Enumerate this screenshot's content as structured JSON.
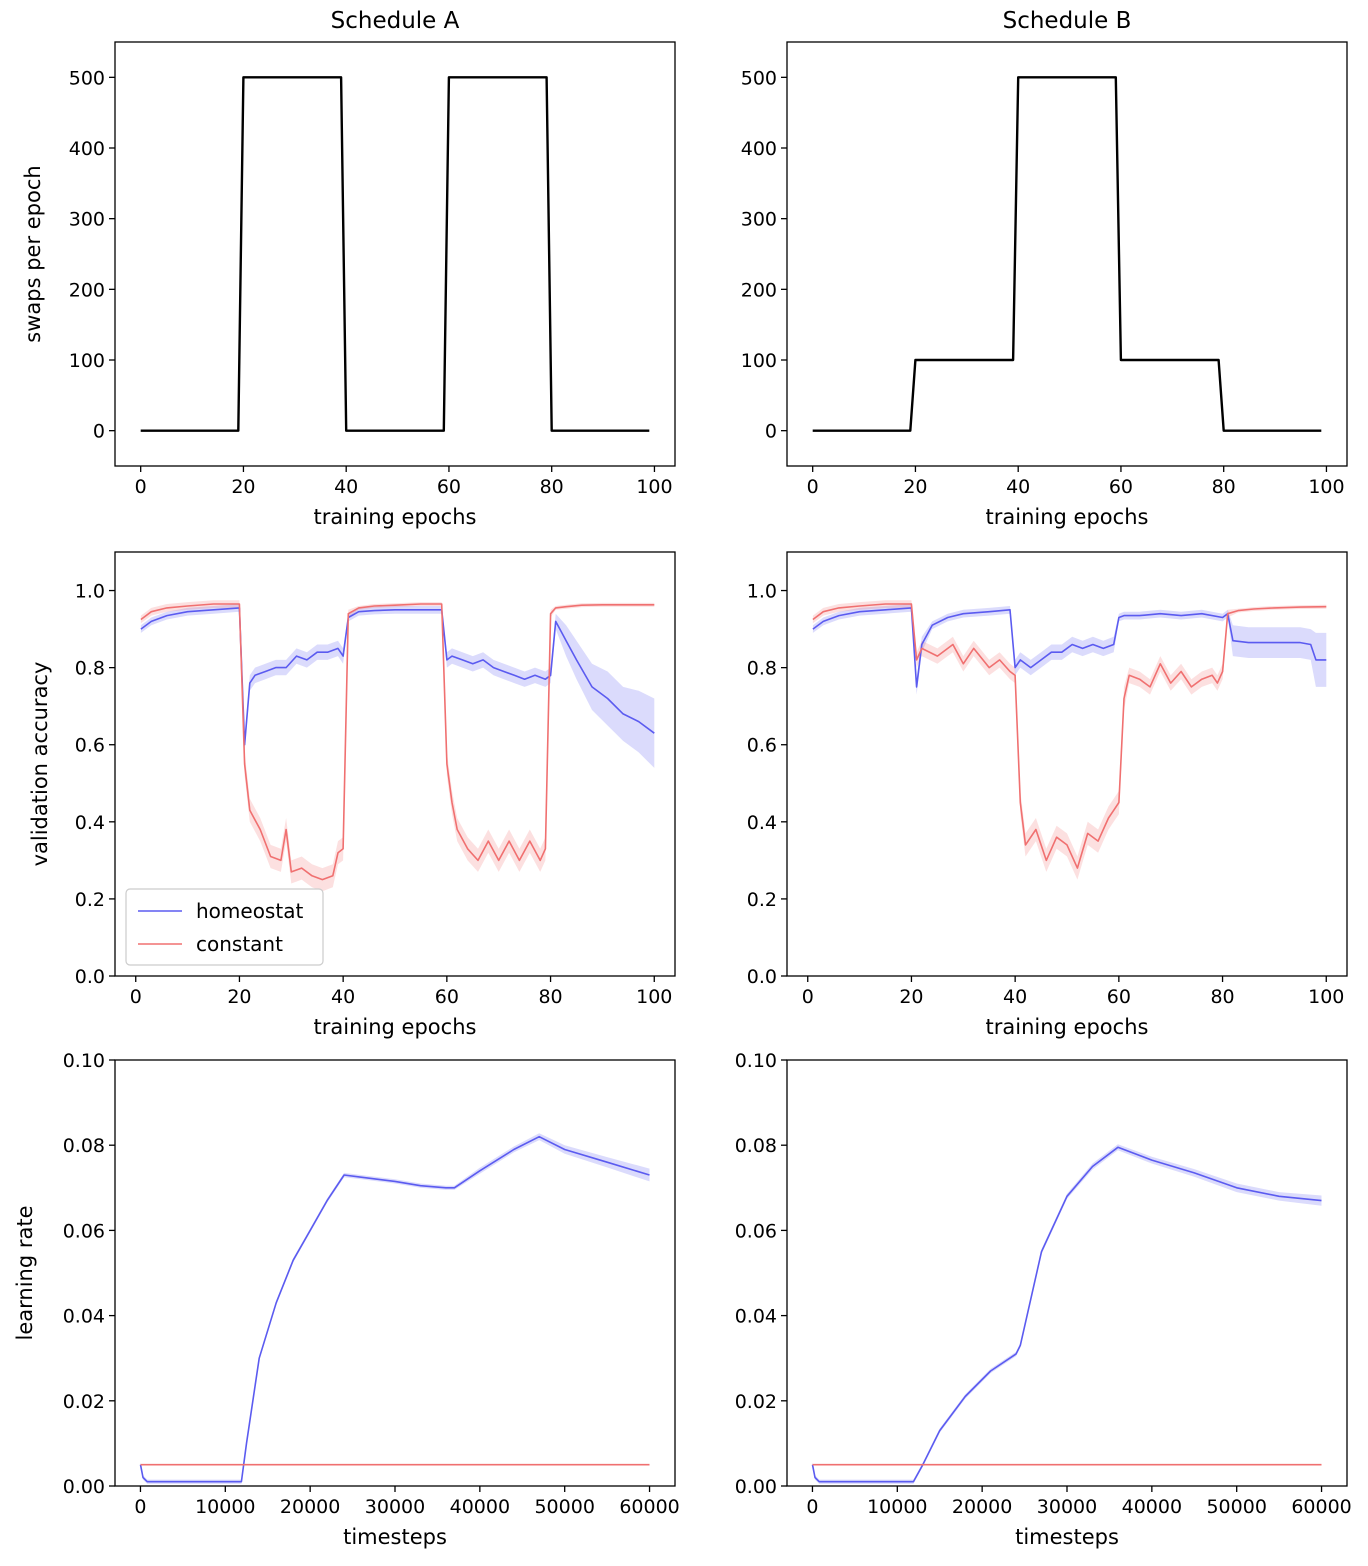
{
  "figure": {
    "titles": [
      "Schedule A",
      "Schedule B"
    ]
  },
  "chart_data": [
    {
      "type": "line",
      "panel": "A-swaps",
      "title": "Schedule A",
      "xlabel": "training epochs",
      "ylabel": "swaps per epoch",
      "xlim": [
        -5,
        104
      ],
      "ylim": [
        -50,
        550
      ],
      "xticks": [
        0,
        20,
        40,
        60,
        80,
        100
      ],
      "yticks": [
        0,
        100,
        200,
        300,
        400,
        500
      ],
      "series": [
        {
          "name": "swaps",
          "color": "#000000",
          "x": [
            0,
            19,
            20,
            39,
            40,
            59,
            60,
            79,
            80,
            99
          ],
          "y": [
            0,
            0,
            500,
            500,
            0,
            0,
            500,
            500,
            0,
            0
          ]
        }
      ]
    },
    {
      "type": "line",
      "panel": "B-swaps",
      "title": "Schedule B",
      "xlabel": "training epochs",
      "ylabel": "",
      "xlim": [
        -5,
        104
      ],
      "ylim": [
        -50,
        550
      ],
      "xticks": [
        0,
        20,
        40,
        60,
        80,
        100
      ],
      "yticks": [
        0,
        100,
        200,
        300,
        400,
        500
      ],
      "series": [
        {
          "name": "swaps",
          "color": "#000000",
          "x": [
            0,
            19,
            20,
            39,
            40,
            59,
            60,
            79,
            80,
            99
          ],
          "y": [
            0,
            0,
            100,
            100,
            500,
            500,
            100,
            100,
            0,
            0
          ]
        }
      ]
    },
    {
      "type": "line",
      "panel": "A-accuracy",
      "xlabel": "training epochs",
      "ylabel": "validation accuracy",
      "xlim": [
        -4,
        104
      ],
      "ylim": [
        0,
        1.1
      ],
      "xticks": [
        0,
        20,
        40,
        60,
        80,
        100
      ],
      "yticks": [
        0.0,
        0.2,
        0.4,
        0.6,
        0.8,
        1.0
      ],
      "legend": {
        "location": "lower-left",
        "entries": [
          "homeostat",
          "constant"
        ]
      },
      "series": [
        {
          "name": "homeostat",
          "color": "#5b5bf0",
          "x": [
            1,
            3,
            6,
            10,
            15,
            20,
            21,
            22,
            23,
            25,
            27,
            29,
            31,
            33,
            35,
            37,
            39,
            40,
            41,
            43,
            46,
            50,
            55,
            59,
            60,
            61,
            63,
            65,
            67,
            69,
            71,
            73,
            75,
            77,
            79,
            80,
            81,
            83,
            85,
            88,
            91,
            94,
            97,
            100
          ],
          "y": [
            0.9,
            0.92,
            0.935,
            0.945,
            0.95,
            0.955,
            0.6,
            0.76,
            0.78,
            0.79,
            0.8,
            0.8,
            0.83,
            0.82,
            0.84,
            0.84,
            0.85,
            0.83,
            0.93,
            0.945,
            0.948,
            0.95,
            0.95,
            0.95,
            0.82,
            0.83,
            0.82,
            0.81,
            0.82,
            0.8,
            0.79,
            0.78,
            0.77,
            0.78,
            0.77,
            0.78,
            0.92,
            0.87,
            0.82,
            0.75,
            0.72,
            0.68,
            0.66,
            0.63
          ],
          "band": [
            0.01,
            0.01,
            0.01,
            0.01,
            0.01,
            0.01,
            0.02,
            0.02,
            0.02,
            0.02,
            0.02,
            0.02,
            0.02,
            0.02,
            0.02,
            0.02,
            0.02,
            0.02,
            0.01,
            0.01,
            0.01,
            0.01,
            0.01,
            0.01,
            0.02,
            0.02,
            0.02,
            0.02,
            0.02,
            0.02,
            0.02,
            0.02,
            0.02,
            0.02,
            0.02,
            0.02,
            0.02,
            0.04,
            0.05,
            0.06,
            0.07,
            0.07,
            0.08,
            0.09
          ]
        },
        {
          "name": "constant",
          "color": "#f07070",
          "x": [
            1,
            3,
            6,
            10,
            15,
            20,
            21,
            22,
            24,
            26,
            28,
            29,
            30,
            32,
            34,
            36,
            38,
            39,
            40,
            41,
            43,
            46,
            50,
            55,
            59,
            60,
            61,
            62,
            64,
            66,
            68,
            70,
            72,
            74,
            76,
            78,
            79,
            80,
            81,
            83,
            86,
            90,
            95,
            100
          ],
          "y": [
            0.925,
            0.945,
            0.955,
            0.96,
            0.965,
            0.965,
            0.55,
            0.43,
            0.38,
            0.31,
            0.3,
            0.38,
            0.27,
            0.28,
            0.26,
            0.25,
            0.26,
            0.32,
            0.33,
            0.94,
            0.955,
            0.96,
            0.962,
            0.965,
            0.965,
            0.55,
            0.45,
            0.38,
            0.33,
            0.3,
            0.35,
            0.3,
            0.35,
            0.3,
            0.35,
            0.3,
            0.33,
            0.94,
            0.955,
            0.958,
            0.962,
            0.963,
            0.963,
            0.963
          ],
          "band": [
            0.01,
            0.01,
            0.01,
            0.01,
            0.01,
            0.01,
            0.03,
            0.03,
            0.03,
            0.03,
            0.03,
            0.03,
            0.03,
            0.03,
            0.03,
            0.03,
            0.03,
            0.03,
            0.03,
            0.01,
            0.005,
            0.005,
            0.005,
            0.005,
            0.005,
            0.03,
            0.03,
            0.03,
            0.03,
            0.03,
            0.03,
            0.03,
            0.03,
            0.03,
            0.03,
            0.03,
            0.03,
            0.01,
            0.005,
            0.005,
            0.005,
            0.005,
            0.005,
            0.005
          ]
        }
      ]
    },
    {
      "type": "line",
      "panel": "B-accuracy",
      "xlabel": "training epochs",
      "ylabel": "",
      "xlim": [
        -4,
        104
      ],
      "ylim": [
        0,
        1.1
      ],
      "xticks": [
        0,
        20,
        40,
        60,
        80,
        100
      ],
      "yticks": [
        0.0,
        0.2,
        0.4,
        0.6,
        0.8,
        1.0
      ],
      "series": [
        {
          "name": "homeostat",
          "color": "#5b5bf0",
          "x": [
            1,
            3,
            6,
            10,
            15,
            20,
            21,
            22,
            24,
            27,
            30,
            35,
            39,
            40,
            41,
            43,
            45,
            47,
            49,
            51,
            53,
            55,
            57,
            59,
            60,
            61,
            64,
            68,
            72,
            76,
            80,
            81,
            82,
            85,
            90,
            95,
            97,
            98,
            100
          ],
          "y": [
            0.9,
            0.92,
            0.935,
            0.945,
            0.95,
            0.955,
            0.75,
            0.86,
            0.91,
            0.93,
            0.94,
            0.945,
            0.95,
            0.8,
            0.82,
            0.8,
            0.82,
            0.84,
            0.84,
            0.86,
            0.85,
            0.86,
            0.85,
            0.86,
            0.93,
            0.935,
            0.935,
            0.94,
            0.935,
            0.94,
            0.93,
            0.94,
            0.87,
            0.865,
            0.865,
            0.865,
            0.86,
            0.82,
            0.82
          ],
          "band": [
            0.01,
            0.01,
            0.01,
            0.01,
            0.01,
            0.01,
            0.02,
            0.02,
            0.01,
            0.01,
            0.01,
            0.01,
            0.01,
            0.02,
            0.02,
            0.02,
            0.02,
            0.02,
            0.02,
            0.02,
            0.02,
            0.02,
            0.02,
            0.02,
            0.01,
            0.01,
            0.01,
            0.01,
            0.01,
            0.01,
            0.01,
            0.01,
            0.04,
            0.04,
            0.04,
            0.04,
            0.04,
            0.07,
            0.07
          ]
        },
        {
          "name": "constant",
          "color": "#f07070",
          "x": [
            1,
            3,
            6,
            10,
            15,
            20,
            21,
            22,
            25,
            28,
            30,
            32,
            35,
            37,
            39,
            40,
            41,
            42,
            44,
            46,
            48,
            50,
            52,
            54,
            56,
            58,
            59,
            60,
            61,
            62,
            64,
            66,
            68,
            70,
            72,
            74,
            76,
            78,
            79,
            80,
            81,
            83,
            86,
            90,
            95,
            100
          ],
          "y": [
            0.925,
            0.945,
            0.955,
            0.96,
            0.965,
            0.965,
            0.82,
            0.85,
            0.83,
            0.86,
            0.81,
            0.85,
            0.8,
            0.82,
            0.79,
            0.78,
            0.45,
            0.34,
            0.38,
            0.3,
            0.36,
            0.34,
            0.28,
            0.37,
            0.35,
            0.41,
            0.43,
            0.45,
            0.72,
            0.78,
            0.77,
            0.75,
            0.81,
            0.76,
            0.79,
            0.75,
            0.77,
            0.78,
            0.76,
            0.79,
            0.94,
            0.948,
            0.952,
            0.955,
            0.957,
            0.958
          ],
          "band": [
            0.01,
            0.01,
            0.01,
            0.01,
            0.01,
            0.01,
            0.02,
            0.02,
            0.02,
            0.02,
            0.02,
            0.02,
            0.02,
            0.02,
            0.02,
            0.02,
            0.03,
            0.03,
            0.03,
            0.03,
            0.03,
            0.03,
            0.03,
            0.03,
            0.03,
            0.03,
            0.03,
            0.03,
            0.03,
            0.02,
            0.02,
            0.02,
            0.02,
            0.02,
            0.02,
            0.02,
            0.02,
            0.02,
            0.02,
            0.02,
            0.01,
            0.005,
            0.005,
            0.005,
            0.005,
            0.005
          ]
        }
      ]
    },
    {
      "type": "line",
      "panel": "A-learning-rate",
      "xlabel": "timesteps",
      "ylabel": "learning rate",
      "xlim": [
        -3000,
        63000
      ],
      "ylim": [
        0.0,
        0.1
      ],
      "xticks": [
        0,
        10000,
        20000,
        30000,
        40000,
        50000,
        60000
      ],
      "yticks": [
        0.0,
        0.02,
        0.04,
        0.06,
        0.08,
        0.1
      ],
      "ytick_labels": [
        "0.00",
        "0.02",
        "0.04",
        "0.06",
        "0.08",
        "0.10"
      ],
      "series": [
        {
          "name": "homeostat",
          "color": "#5b5bf0",
          "x": [
            0,
            300,
            800,
            3000,
            6000,
            9000,
            11900,
            12500,
            14000,
            16000,
            18000,
            20000,
            22000,
            24000,
            26000,
            30000,
            33000,
            36000,
            37000,
            40000,
            44000,
            47000,
            50000,
            55000,
            60000
          ],
          "y": [
            0.005,
            0.002,
            0.001,
            0.001,
            0.001,
            0.001,
            0.001,
            0.01,
            0.03,
            0.043,
            0.053,
            0.06,
            0.067,
            0.073,
            0.0725,
            0.0715,
            0.0705,
            0.07,
            0.07,
            0.074,
            0.079,
            0.082,
            0.079,
            0.076,
            0.073
          ],
          "band": [
            0.0005,
            0.0005,
            0.0005,
            0.0005,
            0.0005,
            0.0005,
            0.0005,
            0.0005,
            0.0005,
            0.0005,
            0.0005,
            0.0005,
            0.0005,
            0.0005,
            0.0005,
            0.0005,
            0.0005,
            0.0005,
            0.0005,
            0.0007,
            0.0007,
            0.0008,
            0.001,
            0.0012,
            0.0015
          ]
        },
        {
          "name": "constant",
          "color": "#f07070",
          "x": [
            0,
            60000
          ],
          "y": [
            0.005,
            0.005
          ]
        }
      ]
    },
    {
      "type": "line",
      "panel": "B-learning-rate",
      "xlabel": "timesteps",
      "ylabel": "",
      "xlim": [
        -3000,
        63000
      ],
      "ylim": [
        0.0,
        0.1
      ],
      "xticks": [
        0,
        10000,
        20000,
        30000,
        40000,
        50000,
        60000
      ],
      "yticks": [
        0.0,
        0.02,
        0.04,
        0.06,
        0.08,
        0.1
      ],
      "ytick_labels": [
        "0.00",
        "0.02",
        "0.04",
        "0.06",
        "0.08",
        "0.10"
      ],
      "series": [
        {
          "name": "homeostat",
          "color": "#5b5bf0",
          "x": [
            0,
            300,
            800,
            3000,
            6000,
            9000,
            11900,
            13000,
            15000,
            18000,
            21000,
            24000,
            24500,
            27000,
            30000,
            33000,
            36000,
            40000,
            45000,
            50000,
            55000,
            60000
          ],
          "y": [
            0.005,
            0.002,
            0.001,
            0.001,
            0.001,
            0.001,
            0.001,
            0.005,
            0.013,
            0.021,
            0.027,
            0.031,
            0.033,
            0.055,
            0.068,
            0.075,
            0.0795,
            0.0765,
            0.0735,
            0.07,
            0.068,
            0.067
          ],
          "band": [
            0.0005,
            0.0005,
            0.0005,
            0.0005,
            0.0005,
            0.0005,
            0.0005,
            0.0005,
            0.0005,
            0.0005,
            0.0005,
            0.0005,
            0.0005,
            0.0006,
            0.0006,
            0.0007,
            0.0007,
            0.0008,
            0.0009,
            0.001,
            0.001,
            0.0012
          ]
        },
        {
          "name": "constant",
          "color": "#f07070",
          "x": [
            0,
            60000
          ],
          "y": [
            0.005,
            0.005
          ]
        }
      ]
    }
  ]
}
